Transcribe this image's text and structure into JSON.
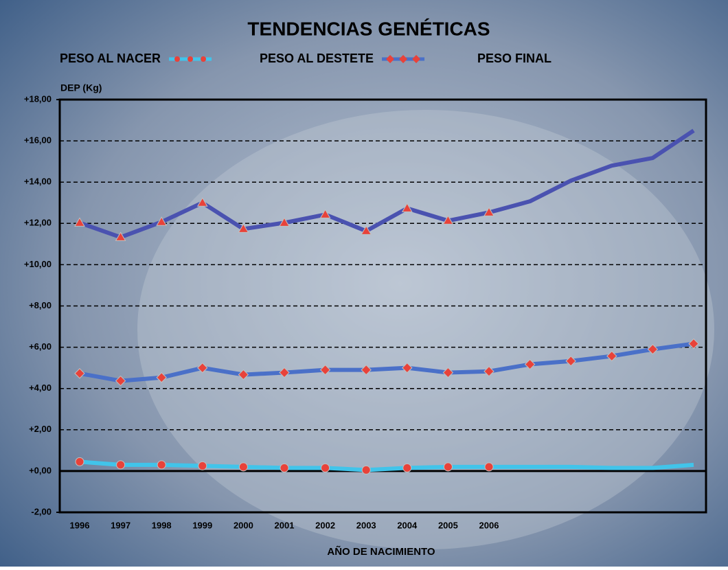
{
  "chart_data": {
    "type": "line",
    "title": "TENDENCIAS GENÉTICAS",
    "y_label": "DEP (Kg)",
    "x_label": "AÑO DE NACIMIENTO",
    "categories": [
      "1996",
      "1997",
      "1998",
      "1999",
      "2000",
      "2001",
      "2002",
      "2003",
      "2004",
      "2005",
      "2006",
      null,
      null,
      null,
      null,
      null
    ],
    "ylim": [
      -2,
      18
    ],
    "yticks": [
      {
        "value": -2,
        "label": "-2,00"
      },
      {
        "value": 0,
        "label": "+0,00"
      },
      {
        "value": 2,
        "label": "+2,00"
      },
      {
        "value": 4,
        "label": "+4,00"
      },
      {
        "value": 6,
        "label": "+6,00"
      },
      {
        "value": 8,
        "label": "+8,00"
      },
      {
        "value": 10,
        "label": "+10,00"
      },
      {
        "value": 12,
        "label": "+12,00"
      },
      {
        "value": 14,
        "label": "+14,00"
      },
      {
        "value": 16,
        "label": "+16,00"
      },
      {
        "value": 18,
        "label": "+18,00"
      }
    ],
    "grid": true,
    "marker_color": "#e8423a",
    "series": [
      {
        "name": "PESO AL NACER",
        "color": "#41c4ea",
        "marker": "circle",
        "values": [
          0.45,
          0.3,
          0.3,
          0.25,
          0.2,
          0.15,
          0.15,
          0.05,
          0.15,
          0.2,
          0.2,
          0.2,
          0.2,
          0.15,
          0.15,
          0.3
        ]
      },
      {
        "name": "PESO AL DESTETE",
        "color": "#4a70c8",
        "marker": "diamond",
        "values": [
          4.73,
          4.37,
          4.53,
          5.0,
          4.67,
          4.77,
          4.9,
          4.9,
          5.0,
          4.77,
          4.83,
          5.17,
          5.33,
          5.57,
          5.9,
          6.17
        ]
      },
      {
        "name": "PESO FINAL",
        "color": "#4a52b0",
        "marker": "triangle",
        "values": [
          12.03,
          11.33,
          12.07,
          13.0,
          11.73,
          12.03,
          12.43,
          11.63,
          12.73,
          12.13,
          12.53,
          13.07,
          14.07,
          14.8,
          15.17,
          16.5
        ]
      }
    ]
  }
}
